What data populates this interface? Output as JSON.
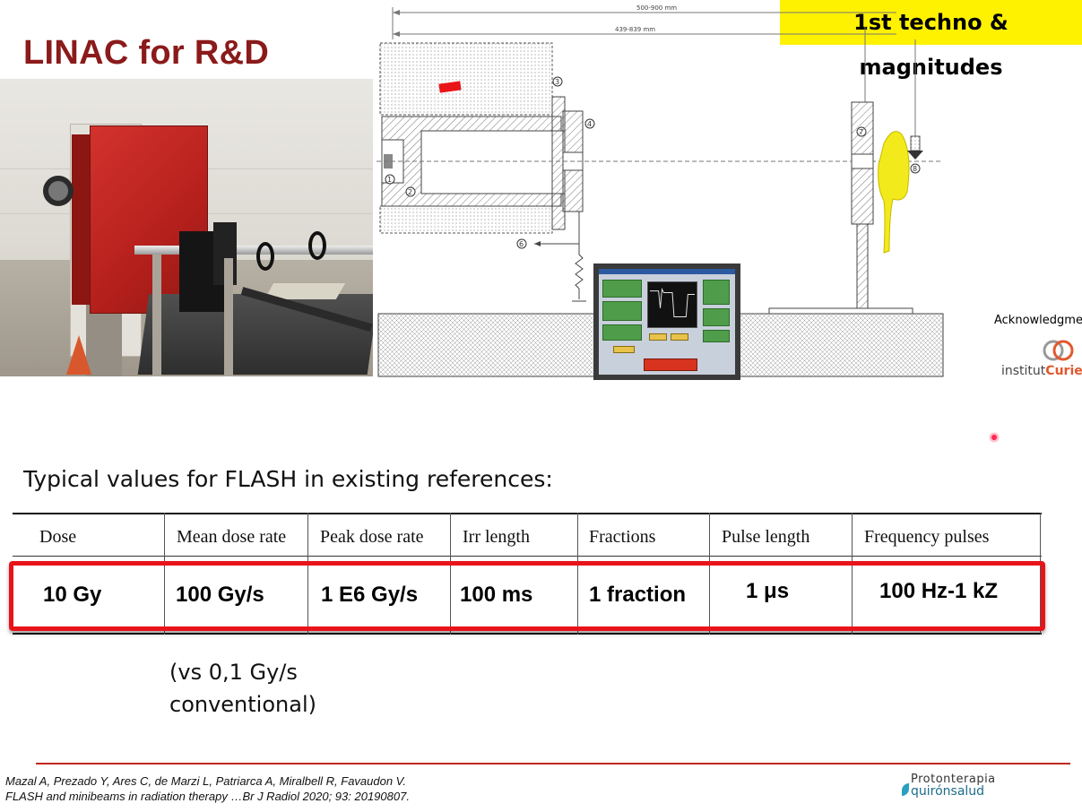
{
  "slide": {
    "title": "LINAC for R&D",
    "badge": "1st techno & magnitudes"
  },
  "diagram": {
    "dim_outer": "500-900 mm",
    "dim_inner": "439-839 mm",
    "markers": [
      "1",
      "2",
      "3",
      "4",
      "6",
      "7",
      "8"
    ]
  },
  "acknowledgment": {
    "label": "Acknowledgment",
    "logo_prefix": "institut",
    "logo_name": "Curie"
  },
  "typical_heading": "Typical values for FLASH in existing references:",
  "table": {
    "headers": [
      "Dose",
      "Mean dose rate",
      "Peak dose rate",
      "Irr length",
      "Fractions",
      "Pulse length",
      "Frequency pulses"
    ],
    "values": [
      "10 Gy",
      "100 Gy/s",
      "1 E6 Gy/s",
      "100 ms",
      "1 fraction",
      "1 μs",
      "100 Hz-1 kZ"
    ]
  },
  "note": {
    "line1": "(vs 0,1 Gy/s",
    "line2": "conventional)"
  },
  "reference": {
    "line1": "Mazal A, Prezado Y, Ares C, de Marzi L, Patriarca A, Miralbell R, Favaudon V.",
    "line2": "FLASH and minibeams in radiation therapy …Br J Radiol 2020; 93: 20190807."
  },
  "footer_logo": {
    "line1": "Protonterapia",
    "line2": "quirónsalud"
  },
  "colors": {
    "title": "#8b1a1a",
    "badge_bg": "#fff200",
    "highlight_box": "#e8141a",
    "footer_line": "#c0281e"
  }
}
